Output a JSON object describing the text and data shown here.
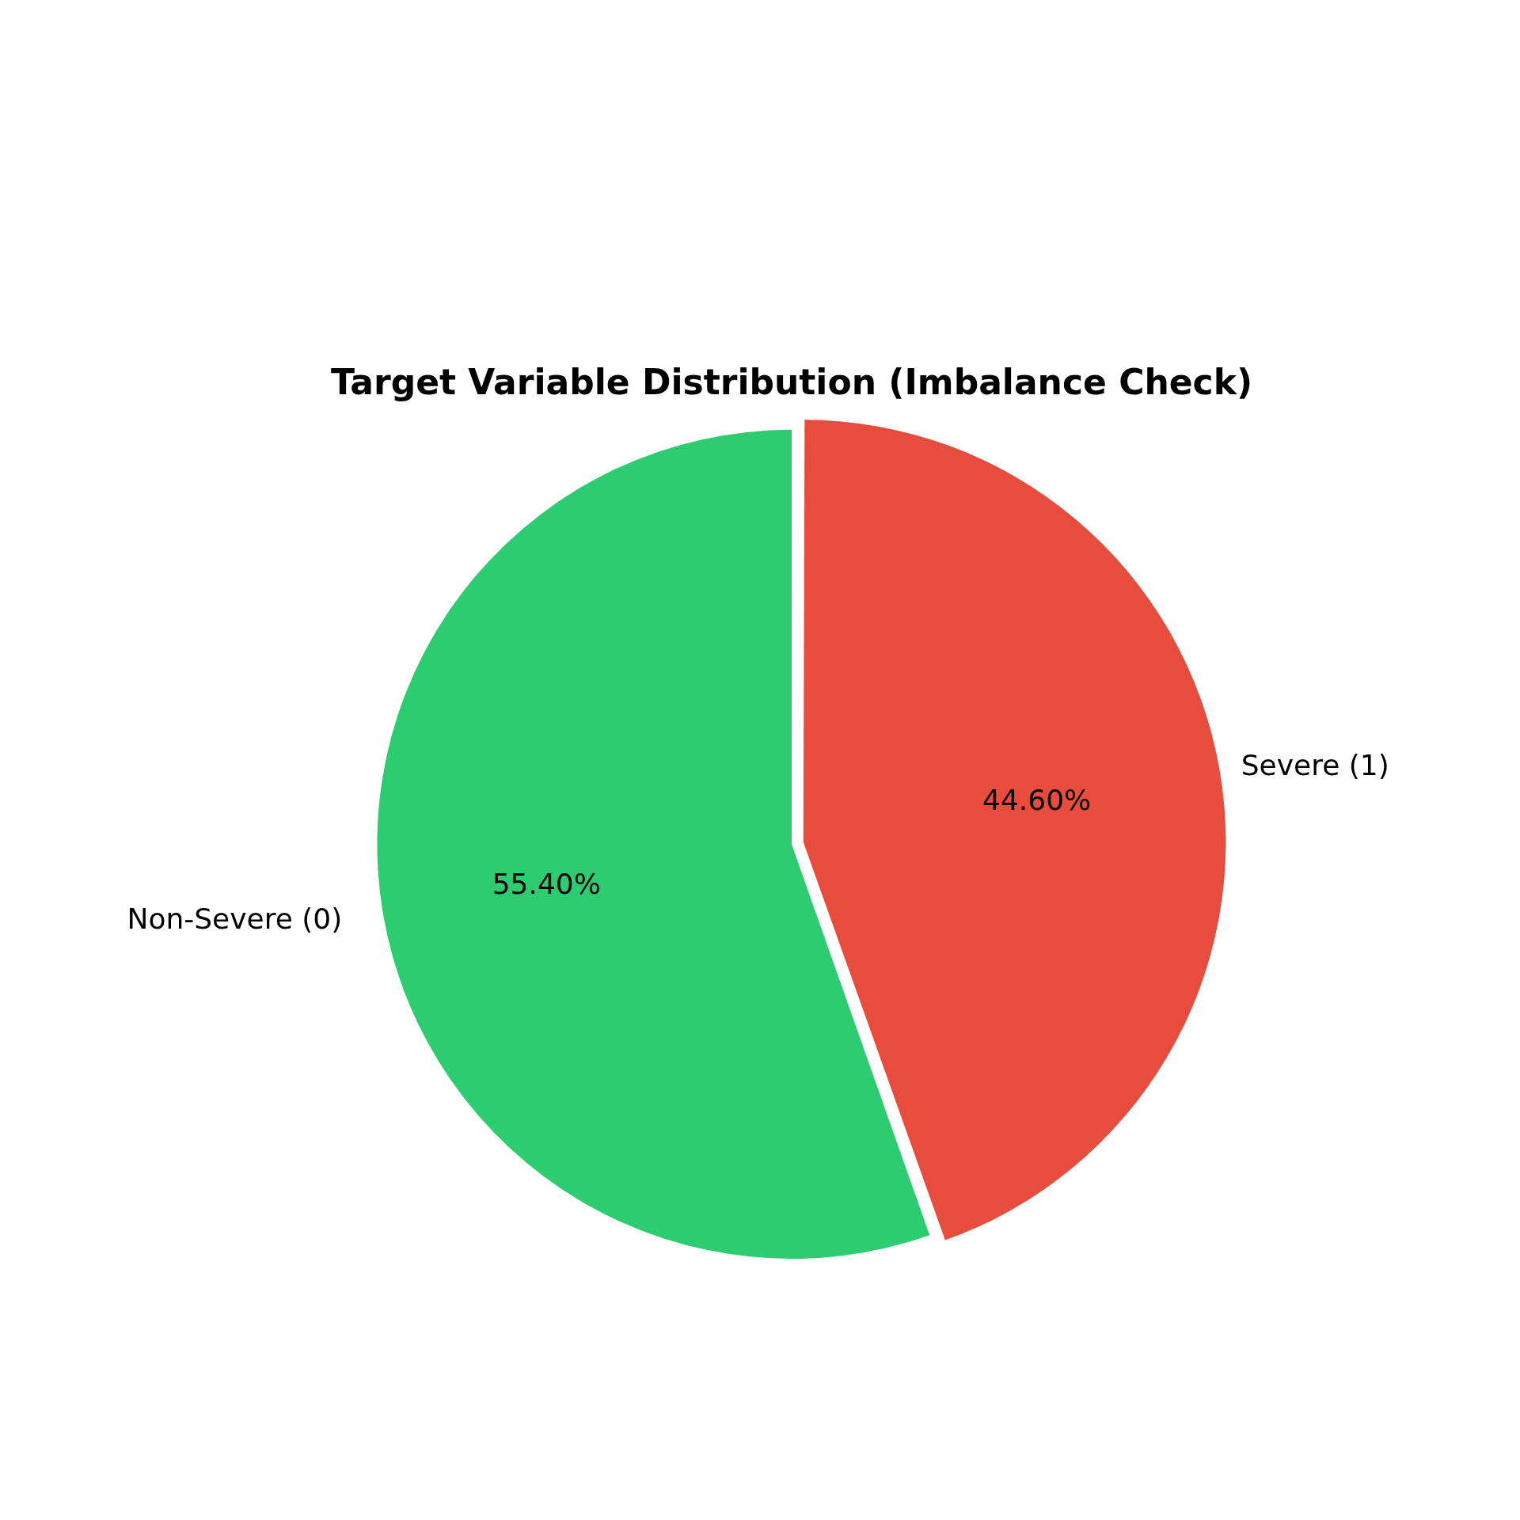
{
  "chart_data": {
    "type": "pie",
    "title": "Target Variable Distribution (Imbalance Check)",
    "categories": [
      "Non-Severe (0)",
      "Severe (1)"
    ],
    "values": [
      55.4,
      44.6
    ],
    "colors": [
      "#2ecc71",
      "#e74c3c"
    ],
    "value_labels": [
      "55.40%",
      "44.60%"
    ],
    "legend": false
  }
}
